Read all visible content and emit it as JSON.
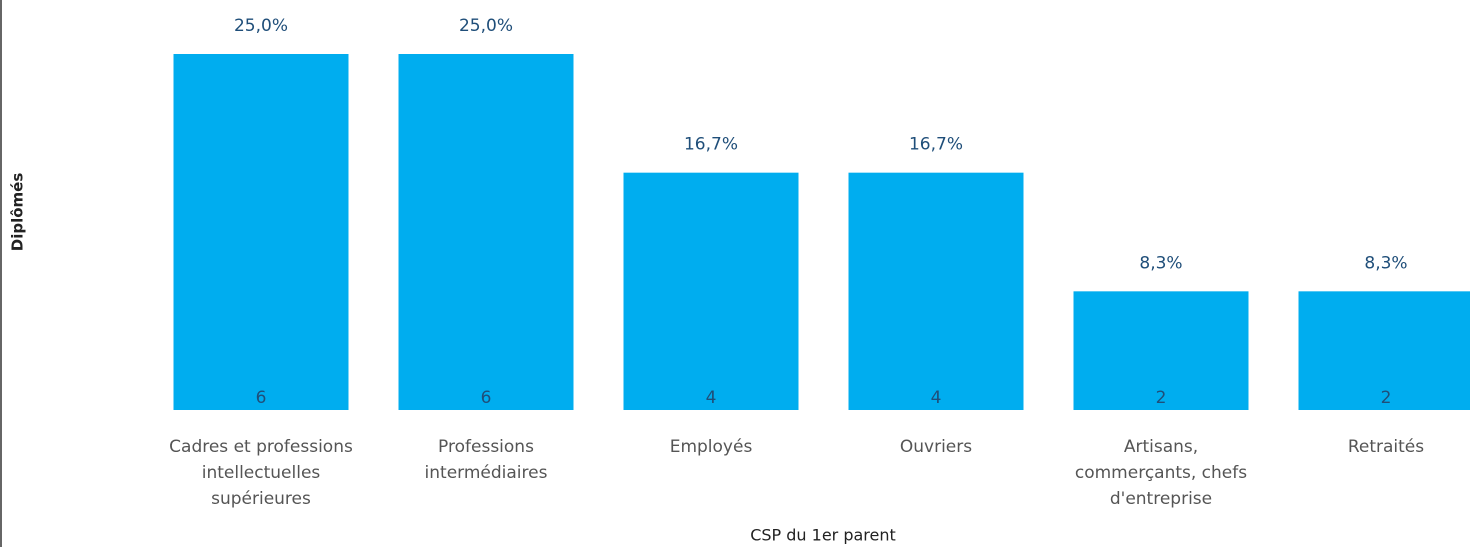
{
  "chart_data": {
    "type": "bar",
    "x_label": "CSP du 1er parent",
    "y_label": "Diplômés",
    "categories": [
      "Cadres et professions intellectuelles supérieures",
      "Professions intermédiaires",
      "Employés",
      "Ouvriers",
      "Artisans, commerçants, chefs d'entreprise",
      "Retraités"
    ],
    "values": [
      6,
      6,
      4,
      4,
      2,
      2
    ],
    "percentages": [
      25.0,
      25.0,
      16.7,
      16.7,
      8.3,
      8.3
    ],
    "percentage_labels": [
      "25,0%",
      "25,0%",
      "16,7%",
      "16,7%",
      "8,3%",
      "8,3%"
    ],
    "color": "#00adef",
    "ylim": [
      0,
      6
    ]
  }
}
